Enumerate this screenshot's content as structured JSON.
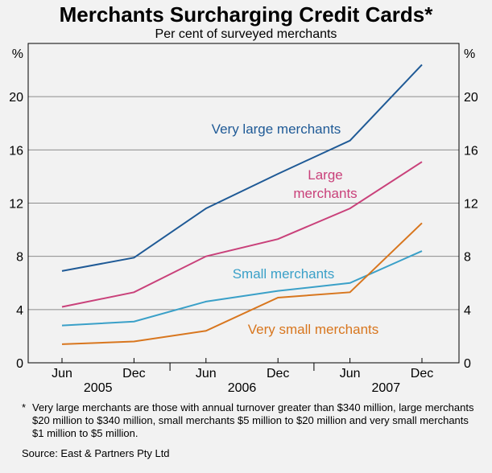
{
  "title": "Merchants Surcharging Credit Cards*",
  "subtitle": "Per cent of surveyed merchants",
  "chart_data": {
    "type": "line",
    "unit_label": "%",
    "ylim": [
      0,
      24
    ],
    "yticks": [
      0,
      4,
      8,
      12,
      16,
      20
    ],
    "x_points": [
      "Jun 2005",
      "Dec 2005",
      "Jun 2006",
      "Dec 2006",
      "Jun 2007",
      "Dec 2007"
    ],
    "x_tick_labels": [
      "Jun",
      "Dec",
      "Jun",
      "Dec",
      "Jun",
      "Dec"
    ],
    "year_labels": [
      "2005",
      "2006",
      "2007"
    ],
    "series": [
      {
        "name": "Very large merchants",
        "color": "#1f5a96",
        "values": [
          6.9,
          7.9,
          11.6,
          14.2,
          16.7,
          22.4
        ]
      },
      {
        "name": "Large merchants",
        "color": "#c9417a",
        "values": [
          4.2,
          5.3,
          8.0,
          9.3,
          11.6,
          15.1
        ]
      },
      {
        "name": "Small merchants",
        "color": "#3aa0c8",
        "values": [
          2.8,
          3.1,
          4.6,
          5.4,
          6.0,
          8.4
        ]
      },
      {
        "name": "Very small merchants",
        "color": "#d8761e",
        "values": [
          1.4,
          1.6,
          2.4,
          4.9,
          5.3,
          10.5
        ]
      }
    ]
  },
  "footnote": {
    "marker": "*",
    "text": "Very large merchants are those with annual turnover greater than $340 million, large merchants $20 million to $340 million, small merchants $5 million to $20 million and very small merchants $1 million to $5 million."
  },
  "source": "Source: East & Partners Pty Ltd"
}
